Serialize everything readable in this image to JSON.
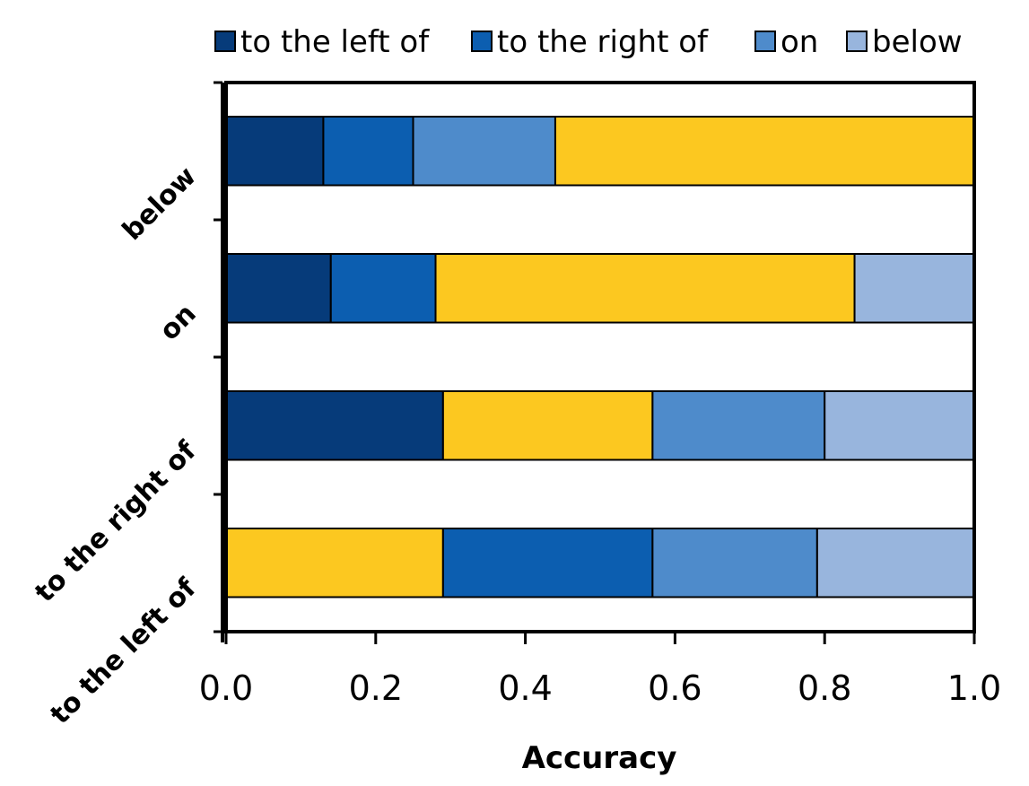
{
  "chart_data": {
    "type": "bar",
    "orientation": "horizontal",
    "stacked": true,
    "title": "",
    "xlabel": "Accuracy",
    "ylabel": "",
    "xlim": [
      0,
      1
    ],
    "xticks": [
      "0.0",
      "0.2",
      "0.4",
      "0.6",
      "0.8",
      "1.0"
    ],
    "categories": [
      "below",
      "on",
      "to the right of",
      "to the left of"
    ],
    "legend_position": "top",
    "legend": [
      {
        "label": "to the left of",
        "color": "#063B7A"
      },
      {
        "label": "to the right of",
        "color": "#0C5EB0"
      },
      {
        "label": "on",
        "color": "#4E8BCB"
      },
      {
        "label": "below",
        "color": "#98B5DD"
      }
    ],
    "correct_color": "#FCC820",
    "rows": [
      {
        "category": "below",
        "segments": [
          {
            "label": "to the left of",
            "value": 0.13
          },
          {
            "label": "to the right of",
            "value": 0.12
          },
          {
            "label": "on",
            "value": 0.19
          },
          {
            "label": "below",
            "value": 0.56
          }
        ]
      },
      {
        "category": "on",
        "segments": [
          {
            "label": "to the left of",
            "value": 0.14
          },
          {
            "label": "to the right of",
            "value": 0.14
          },
          {
            "label": "on",
            "value": 0.56
          },
          {
            "label": "below",
            "value": 0.16
          }
        ]
      },
      {
        "category": "to the right of",
        "segments": [
          {
            "label": "to the left of",
            "value": 0.29
          },
          {
            "label": "to the right of",
            "value": 0.28
          },
          {
            "label": "on",
            "value": 0.23
          },
          {
            "label": "below",
            "value": 0.2
          }
        ]
      },
      {
        "category": "to the left of",
        "segments": [
          {
            "label": "to the left of",
            "value": 0.29
          },
          {
            "label": "to the right of",
            "value": 0.28
          },
          {
            "label": "on",
            "value": 0.22
          },
          {
            "label": "below",
            "value": 0.21
          }
        ]
      }
    ]
  }
}
